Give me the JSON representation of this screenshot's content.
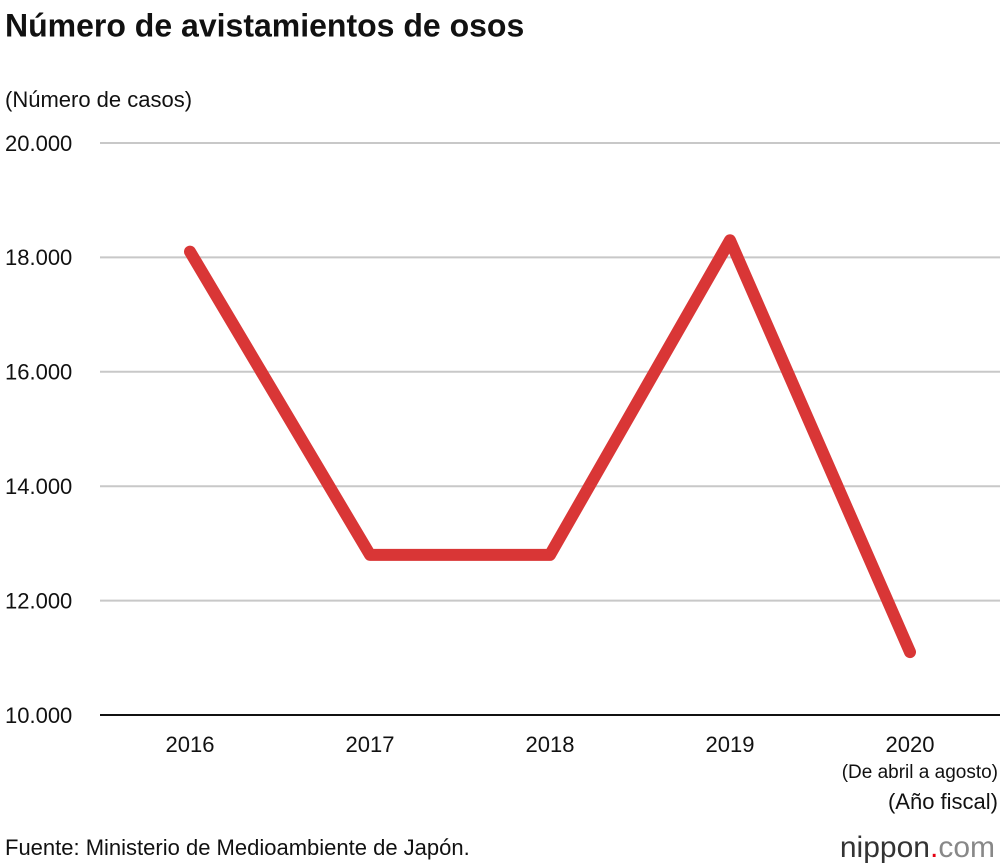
{
  "chart_data": {
    "type": "line",
    "title": "Número de avistamientos de osos",
    "y_label": "(Número de casos)",
    "x_label": "(Año fiscal)",
    "source": "Fuente: Ministerio de Medioambiente de Japón.",
    "brand": [
      "nippon",
      ".",
      "com"
    ],
    "categories": [
      "2016",
      "2017",
      "2018",
      "2019",
      "2020"
    ],
    "annotations": [
      {
        "x": "2020",
        "text": "(De abril a agosto)"
      }
    ],
    "series": [
      {
        "color": "#d93636",
        "values": [
          18100,
          12800,
          12800,
          18300,
          11100
        ]
      }
    ],
    "ylim": [
      10000,
      20000
    ],
    "yticks": [
      {
        "value": 10000,
        "label": "10.000"
      },
      {
        "value": 12000,
        "label": "12.000"
      },
      {
        "value": 14000,
        "label": "14.000"
      },
      {
        "value": 16000,
        "label": "16.000"
      },
      {
        "value": 18000,
        "label": "18.000"
      },
      {
        "value": 20000,
        "label": "20.000"
      }
    ],
    "grid": true
  }
}
